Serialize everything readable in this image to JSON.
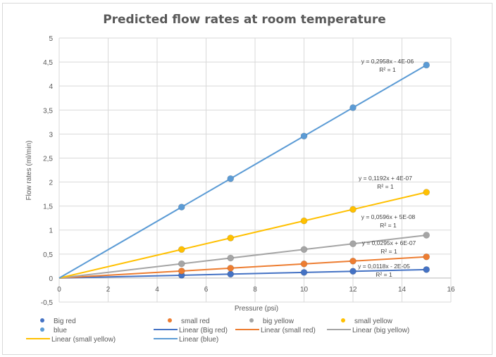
{
  "chart_data": {
    "type": "scatter",
    "title": "Predicted flow rates at room temperature",
    "xlabel": "Pressure (psi)",
    "ylabel": "Flow rates (ml/min)",
    "xlim": [
      0,
      16
    ],
    "ylim": [
      -0.5,
      5
    ],
    "xticks": [
      0,
      2,
      4,
      6,
      8,
      10,
      12,
      14,
      16
    ],
    "xtick_labels": [
      "0",
      "2",
      "4",
      "6",
      "8",
      "10",
      "12",
      "14",
      "16"
    ],
    "yticks": [
      -0.5,
      0,
      0.5,
      1,
      1.5,
      2,
      2.5,
      3,
      3.5,
      4,
      4.5,
      5
    ],
    "ytick_labels": [
      "-0,5",
      "0",
      "0,5",
      "1",
      "1,5",
      "2",
      "2,5",
      "3",
      "3,5",
      "4",
      "4,5",
      "5"
    ],
    "grid": true,
    "legend_position": "bottom",
    "x": [
      0,
      5,
      7,
      10,
      12,
      15
    ],
    "series": [
      {
        "name": "Big red",
        "color": "#4472c4",
        "values": [
          0,
          0.059,
          0.0826,
          0.118,
          0.1416,
          0.177
        ],
        "trendline": {
          "name": "Linear (Big red)",
          "equation": "y = 0,0118x - 2E-05",
          "r2": "R² = 1"
        }
      },
      {
        "name": "small red",
        "color": "#ed7d31",
        "values": [
          0,
          0.1475,
          0.2065,
          0.295,
          0.354,
          0.4425
        ],
        "trendline": {
          "name": "Linear (small red)",
          "equation": "y = 0,0295x + 6E-07",
          "r2": "R² = 1"
        }
      },
      {
        "name": "big yellow",
        "color": "#a5a5a5",
        "values": [
          0,
          0.298,
          0.4172,
          0.596,
          0.7152,
          0.894
        ],
        "trendline": {
          "name": "Linear (big yellow)",
          "equation": "y = 0,0596x + 5E-08",
          "r2": "R² = 1"
        }
      },
      {
        "name": "small yellow",
        "color": "#ffc000",
        "values": [
          0,
          0.596,
          0.8344,
          1.192,
          1.4304,
          1.788
        ],
        "trendline": {
          "name": "Linear (small yellow)",
          "equation": "y = 0,1192x + 4E-07",
          "r2": "R² = 1"
        }
      },
      {
        "name": "blue",
        "color": "#5b9bd5",
        "values": [
          0,
          1.479,
          2.0706,
          2.958,
          3.5496,
          4.437
        ],
        "trendline": {
          "name": "Linear (blue)",
          "equation": "y = 0,2958x - 4E-06",
          "r2": "R² = 1"
        }
      }
    ],
    "legend": [
      {
        "label": "Big red",
        "kind": "marker",
        "color": "#4472c4"
      },
      {
        "label": "small red",
        "kind": "marker",
        "color": "#ed7d31"
      },
      {
        "label": "big yellow",
        "kind": "marker",
        "color": "#a5a5a5"
      },
      {
        "label": "small yellow",
        "kind": "marker",
        "color": "#ffc000"
      },
      {
        "label": "blue",
        "kind": "marker",
        "color": "#5b9bd5"
      },
      {
        "label": "Linear (Big red)",
        "kind": "line",
        "color": "#4472c4"
      },
      {
        "label": "Linear (small red)",
        "kind": "line",
        "color": "#ed7d31"
      },
      {
        "label": "Linear (big yellow)",
        "kind": "line",
        "color": "#a5a5a5"
      },
      {
        "label": "Linear (small yellow)",
        "kind": "line",
        "color": "#ffc000"
      },
      {
        "label": "Linear (blue)",
        "kind": "line",
        "color": "#5b9bd5"
      }
    ]
  }
}
